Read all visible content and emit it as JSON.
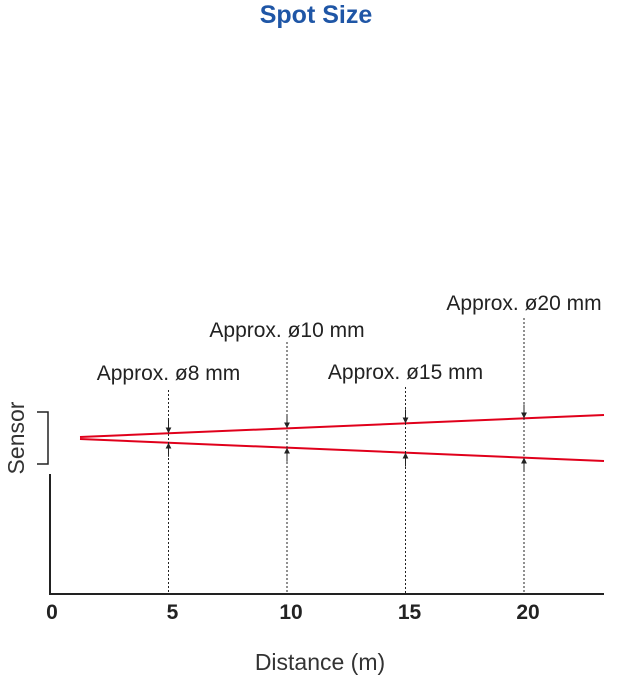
{
  "title": "Spot Size",
  "axis": {
    "x_label": "Distance (m)",
    "y_label": "Sensor",
    "x_ticks": [
      "0",
      "5",
      "10",
      "15",
      "20"
    ]
  },
  "callouts": [
    {
      "label": "Approx. ø8 mm",
      "distance_m": 5
    },
    {
      "label": "Approx. ø10 mm",
      "distance_m": 10
    },
    {
      "label": "Approx. ø15 mm",
      "distance_m": 15
    },
    {
      "label": "Approx. ø20 mm",
      "distance_m": 20
    }
  ],
  "colors": {
    "title": "#1f56a6",
    "beam": "#e0001b",
    "axis": "#222222"
  }
}
